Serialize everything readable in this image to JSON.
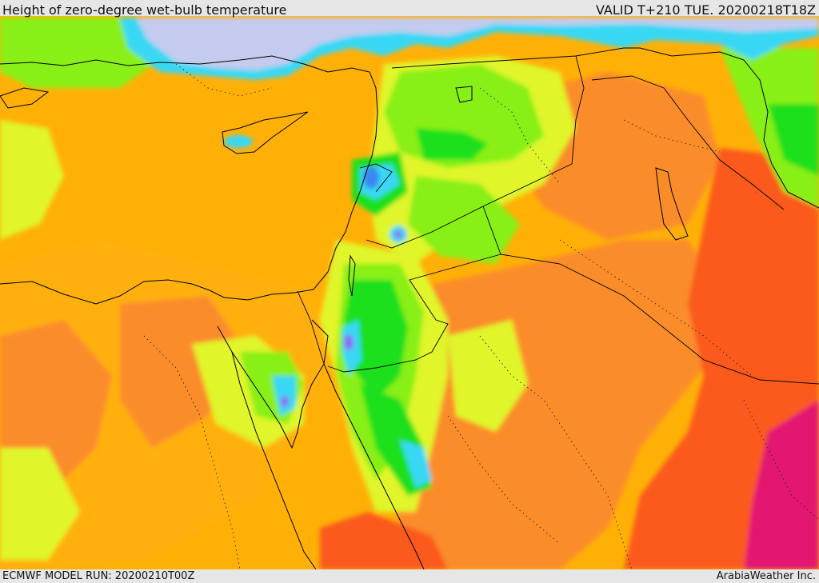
{
  "header": {
    "title": "Height of zero-degree wet-bulb temperature",
    "valid": "VALID T+210 TUE. 20200218T18Z"
  },
  "footer": {
    "model_run": "ECMWF MODEL RUN: 20200210T00Z",
    "credit": "ArabiaWeather Inc."
  },
  "colors": {
    "sea_cold": "#c5cbee",
    "violet": "#8a6cf0",
    "blue": "#3a86f0",
    "cyan": "#38d8f4",
    "green": "#1fe01f",
    "lightgreen": "#88f018",
    "yellow": "#e0f52a",
    "orange_light": "#ffb007",
    "orange": "#fb8c2a",
    "red_orange": "#fb5a1a",
    "magenta": "#e31872",
    "border": "#000000"
  }
}
